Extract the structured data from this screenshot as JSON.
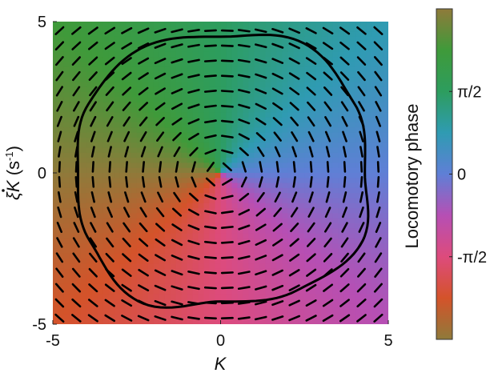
{
  "chart_data": {
    "type": "heatmap",
    "title": "",
    "xlabel": "K",
    "ylabel_symbol": "ξ",
    "ylabel_main": "K",
    "ylabel_unit_open": " (s",
    "ylabel_unit_exp": "-1",
    "ylabel_unit_close": ")",
    "xlim": [
      -5,
      5
    ],
    "ylim": [
      -5,
      5
    ],
    "x_ticks": [
      {
        "value": -5,
        "label": "-5"
      },
      {
        "value": 0,
        "label": "0"
      },
      {
        "value": 5,
        "label": "5"
      }
    ],
    "y_ticks": [
      {
        "value": 5,
        "label": "5"
      },
      {
        "value": 0,
        "label": "0"
      },
      {
        "value": -5,
        "label": "-5"
      }
    ],
    "colorbar": {
      "label": "Locomotory phase",
      "range": [
        -3.1416,
        3.1416
      ],
      "ticks": [
        {
          "value": 1.5708,
          "label": "π/2"
        },
        {
          "value": 0,
          "label": "0"
        },
        {
          "value": -1.5708,
          "label": "-π/2"
        }
      ],
      "stops": [
        {
          "value": -3.1416,
          "color": "#8f7a3a"
        },
        {
          "value": -2.3562,
          "color": "#d4532a"
        },
        {
          "value": -1.5708,
          "color": "#dd4b7c"
        },
        {
          "value": -0.7854,
          "color": "#b64fb4"
        },
        {
          "value": 0,
          "color": "#5f7fd6"
        },
        {
          "value": 0.7854,
          "color": "#2f9bb2"
        },
        {
          "value": 1.5708,
          "color": "#2d9d5e"
        },
        {
          "value": 2.3562,
          "color": "#3f9a3a"
        },
        {
          "value": 3.1416,
          "color": "#8f7a3a"
        }
      ]
    },
    "limit_cycle": [
      {
        "angle_deg": 0,
        "radius": 4.3
      },
      {
        "angle_deg": 30,
        "radius": 4.6
      },
      {
        "angle_deg": 60,
        "radius": 4.95
      },
      {
        "angle_deg": 90,
        "radius": 4.5
      },
      {
        "angle_deg": 120,
        "radius": 4.75
      },
      {
        "angle_deg": 150,
        "radius": 4.55
      },
      {
        "angle_deg": 180,
        "radius": 4.25
      },
      {
        "angle_deg": 210,
        "radius": 4.5
      },
      {
        "angle_deg": 240,
        "radius": 4.9
      },
      {
        "angle_deg": 270,
        "radius": 4.25
      },
      {
        "angle_deg": 300,
        "radius": 4.5
      },
      {
        "angle_deg": 330,
        "radius": 4.8
      }
    ],
    "vector_field": {
      "grid_x": [
        -4.8,
        -4.3,
        -3.8,
        -3.3,
        -2.8,
        -2.3,
        -1.8,
        -1.3,
        -0.8,
        -0.3,
        0.2,
        0.7,
        1.2,
        1.7,
        2.2,
        2.7,
        3.2,
        3.7,
        4.2,
        4.7
      ],
      "grid_y": [
        -4.8,
        -4.3,
        -3.8,
        -3.3,
        -2.8,
        -2.3,
        -1.8,
        -1.3,
        -0.8,
        -0.3,
        0.2,
        0.7,
        1.2,
        1.7,
        2.2,
        2.7,
        3.2,
        3.7,
        4.2,
        4.7
      ],
      "rotation": "clockwise",
      "arrow_color": "#000000"
    },
    "line_color": "#000000",
    "grid": false,
    "colorbar_position": "right"
  }
}
